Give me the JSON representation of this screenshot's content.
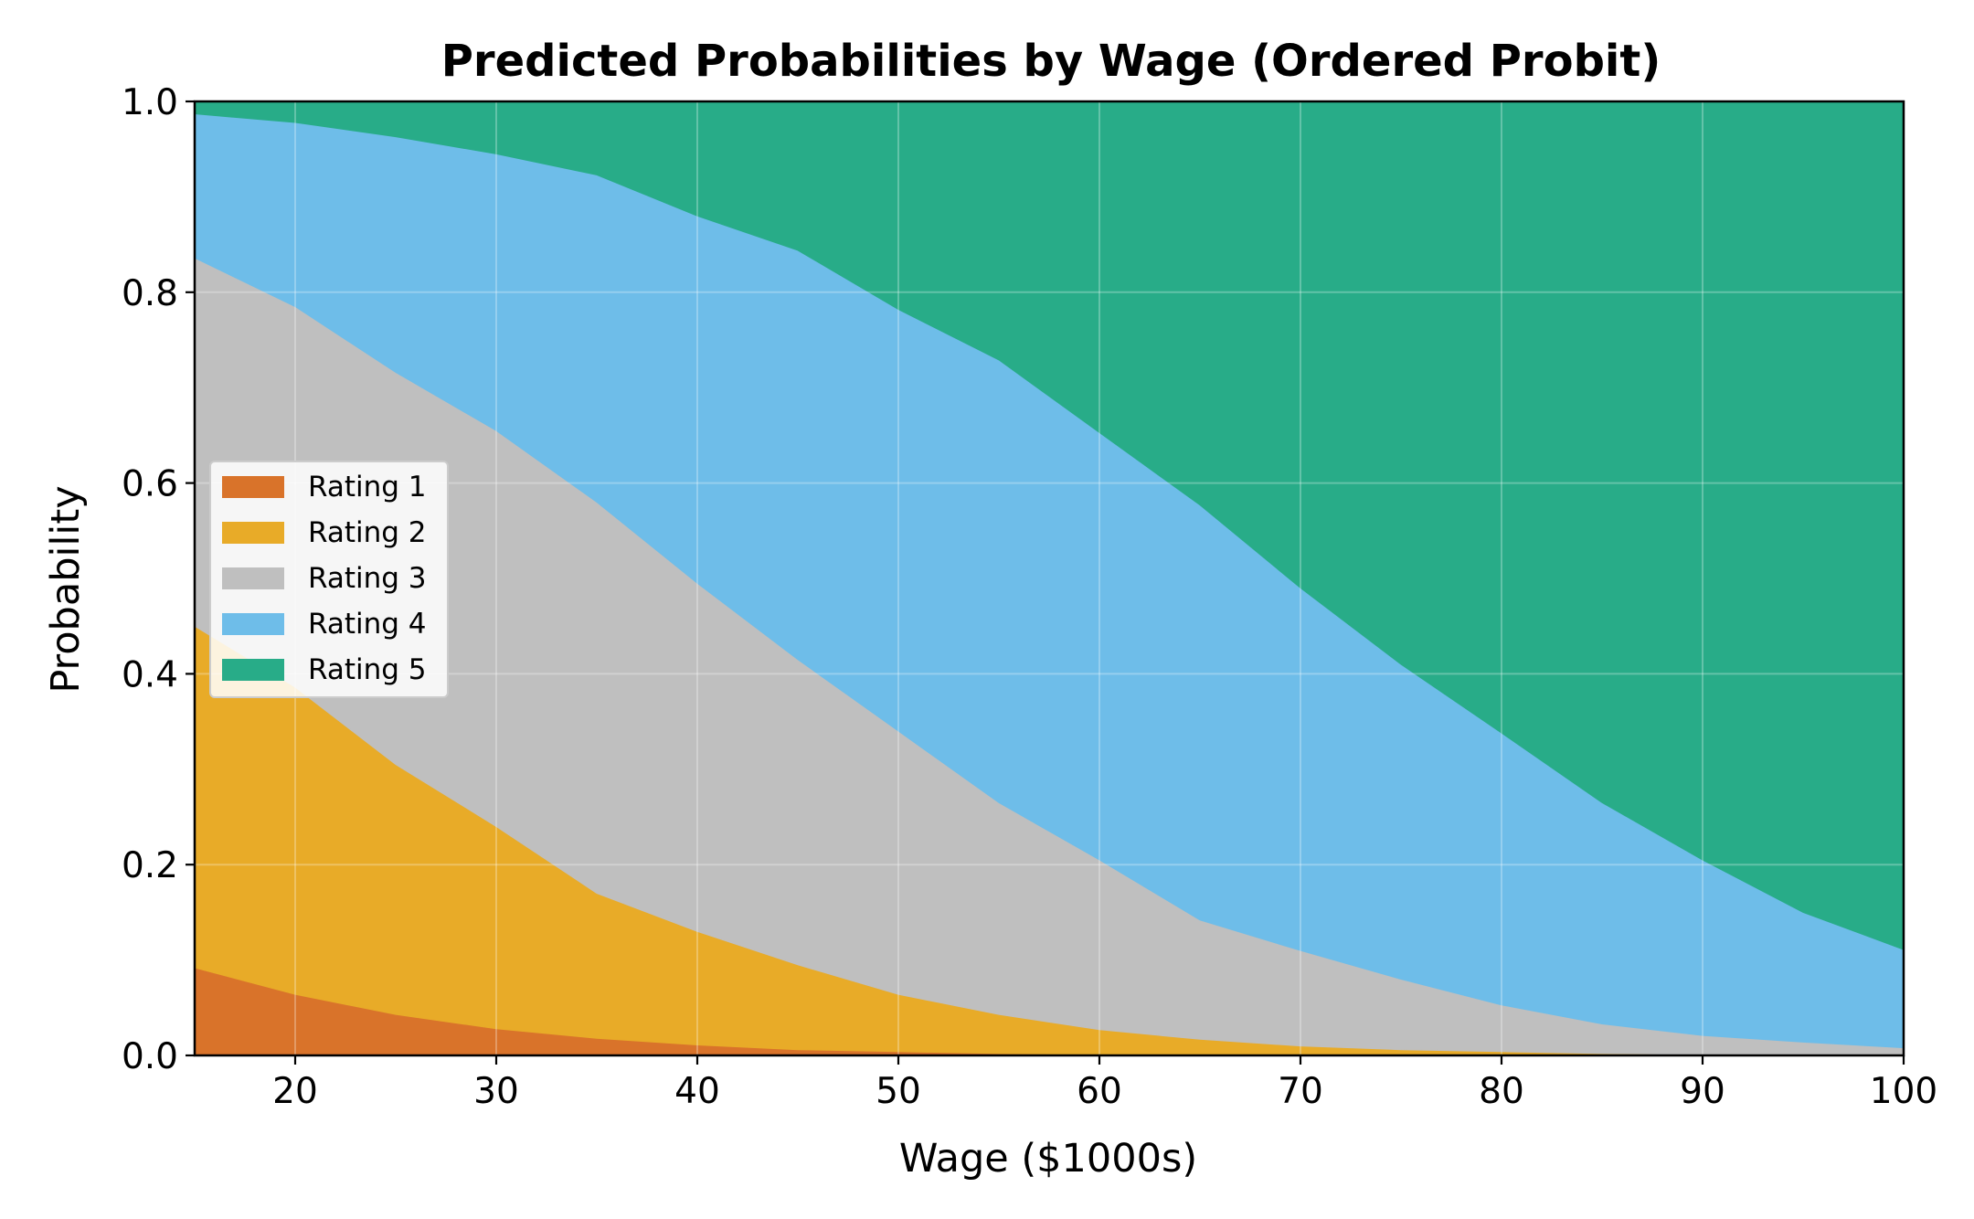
{
  "chart_data": {
    "type": "area",
    "stacked": true,
    "title": "Predicted Probabilities by Wage (Ordered Probit)",
    "xlabel": "Wage ($1000s)",
    "ylabel": "Probability",
    "xlim": [
      15,
      100
    ],
    "ylim": [
      0,
      1
    ],
    "xticks": [
      20,
      30,
      40,
      50,
      60,
      70,
      80,
      90,
      100
    ],
    "yticks": [
      "0.0",
      "0.2",
      "0.4",
      "0.6",
      "0.8",
      "1.0"
    ],
    "ytick_values": [
      0,
      0.2,
      0.4,
      0.6,
      0.8,
      1.0
    ],
    "grid": true,
    "legend_position": "center-left",
    "x": [
      15,
      20,
      25,
      30,
      35,
      40,
      45,
      50,
      55,
      60,
      65,
      70,
      75,
      80,
      85,
      90,
      95,
      100
    ],
    "series": [
      {
        "name": "Rating 1",
        "color": "#d9732a",
        "values": [
          0.092,
          0.064,
          0.043,
          0.028,
          0.018,
          0.011,
          0.006,
          0.004,
          0.002,
          0.001,
          0.001,
          0.0,
          0.0,
          0.0,
          0.0,
          0.0,
          0.0,
          0.0
        ]
      },
      {
        "name": "Rating 2",
        "color": "#e8ab28",
        "values": [
          0.358,
          0.322,
          0.262,
          0.212,
          0.152,
          0.119,
          0.089,
          0.06,
          0.041,
          0.026,
          0.016,
          0.01,
          0.006,
          0.004,
          0.002,
          0.001,
          0.001,
          0.0
        ]
      },
      {
        "name": "Rating 3",
        "color": "#bfbfbf",
        "values": [
          0.386,
          0.399,
          0.411,
          0.415,
          0.41,
          0.365,
          0.32,
          0.276,
          0.222,
          0.178,
          0.125,
          0.1,
          0.074,
          0.049,
          0.031,
          0.02,
          0.013,
          0.008
        ]
      },
      {
        "name": "Rating 4",
        "color": "#6ebde9",
        "values": [
          0.151,
          0.193,
          0.247,
          0.29,
          0.343,
          0.385,
          0.429,
          0.442,
          0.464,
          0.448,
          0.435,
          0.38,
          0.33,
          0.285,
          0.232,
          0.184,
          0.136,
          0.103
        ]
      },
      {
        "name": "Rating 5",
        "color": "#28ac88",
        "values": [
          0.013,
          0.022,
          0.037,
          0.055,
          0.077,
          0.12,
          0.156,
          0.218,
          0.271,
          0.347,
          0.423,
          0.51,
          0.59,
          0.662,
          0.735,
          0.795,
          0.85,
          0.889
        ]
      }
    ]
  }
}
